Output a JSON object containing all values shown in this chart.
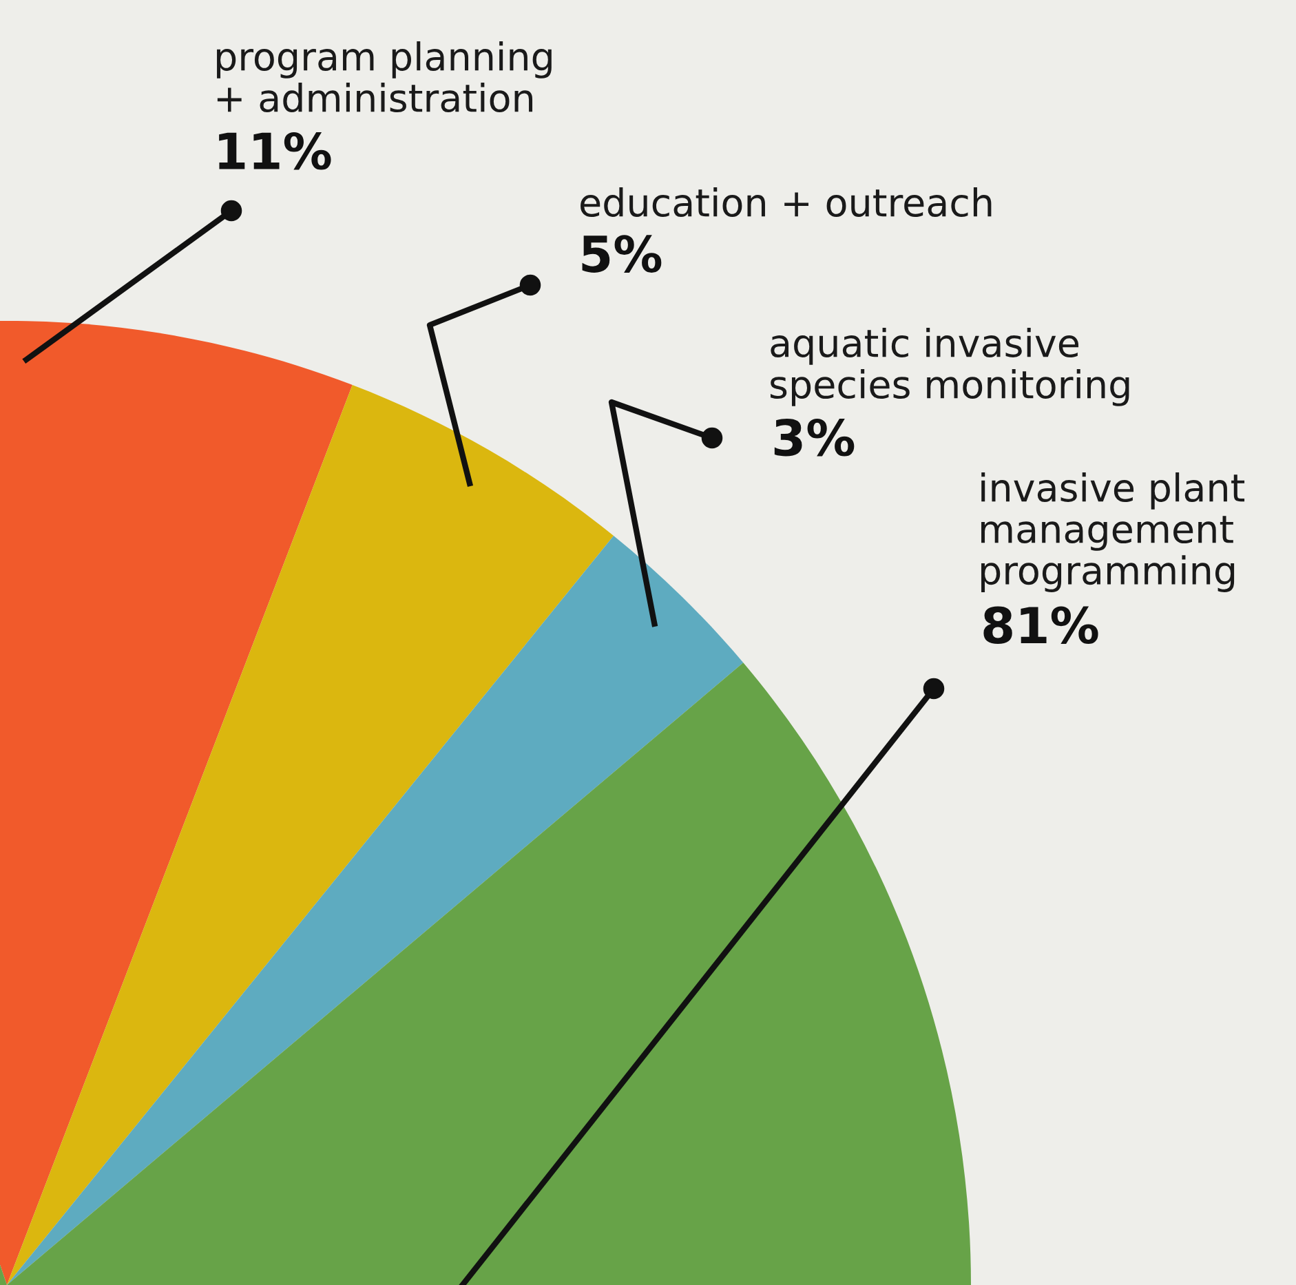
{
  "chart_data": {
    "type": "pie",
    "categories": [
      "program planning\n+ administration",
      "education + outreach",
      "aquatic invasive\nspecies monitoring",
      "invasive plant\nmanagement\nprogramming"
    ],
    "values": [
      11,
      5,
      3,
      81
    ],
    "value_labels": [
      "11%",
      "5%",
      "3%",
      "81%"
    ],
    "colors": [
      "#f15a2b",
      "#dbb70f",
      "#5eabc0",
      "#67a348"
    ],
    "legend": false
  }
}
